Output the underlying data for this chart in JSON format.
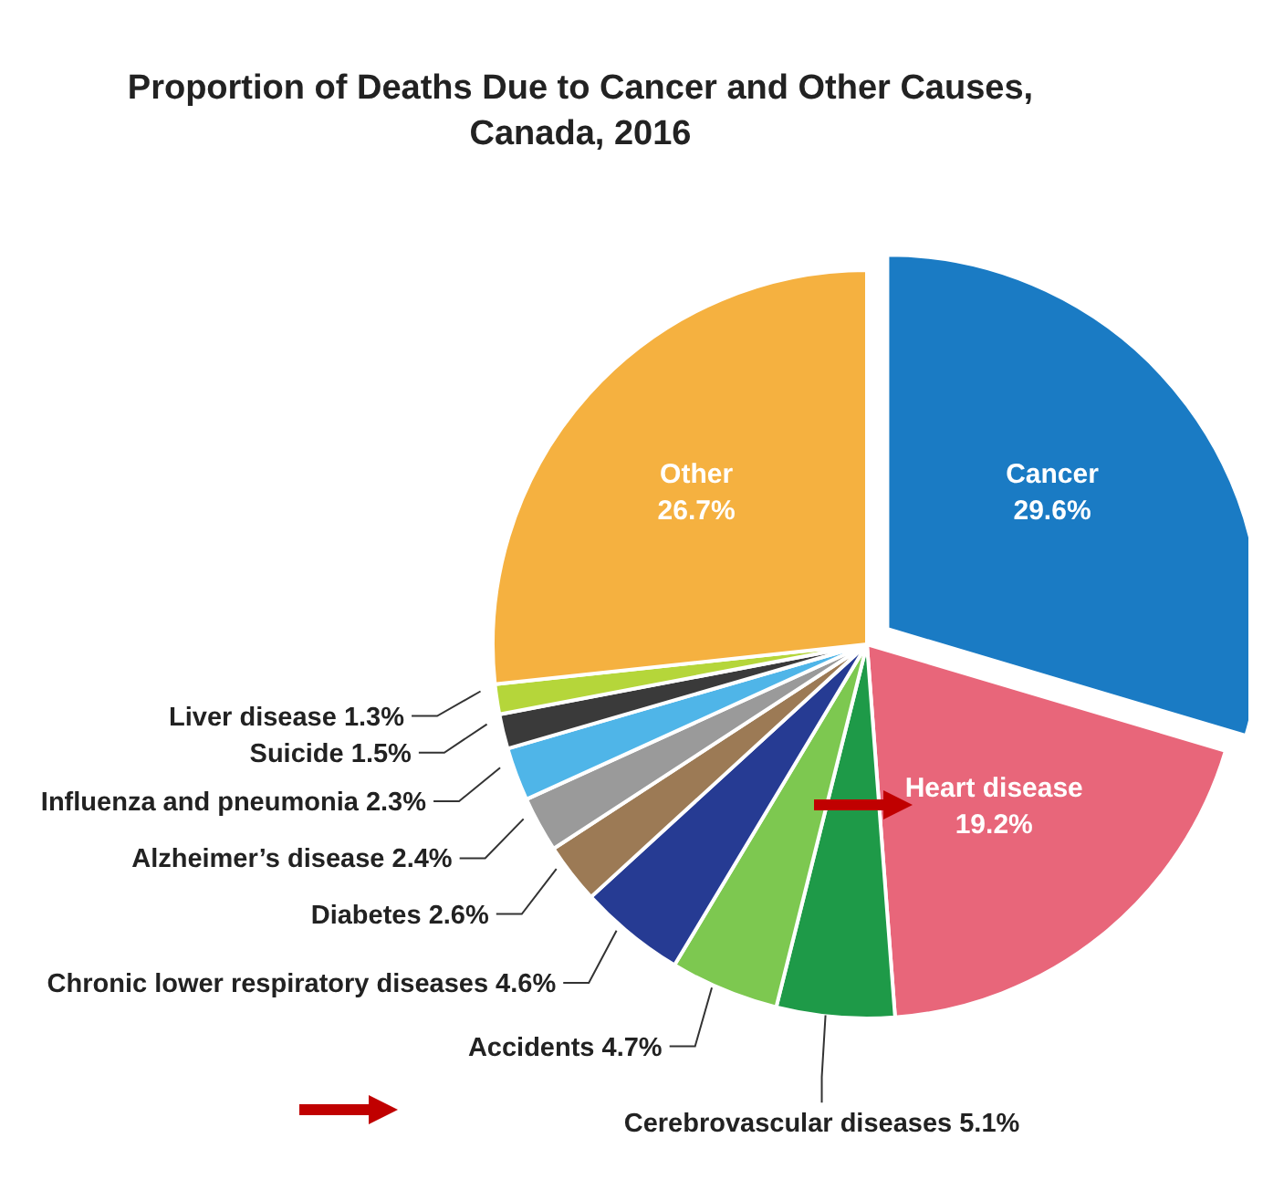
{
  "chart_data": {
    "type": "pie",
    "title": "Proportion of Deaths Due to Cancer and Other Causes, Canada, 2016",
    "categories": [
      "Cancer",
      "Heart disease",
      "Cerebrovascular diseases",
      "Accidents",
      "Chronic lower respiratory diseases",
      "Diabetes",
      "Alzheimer’s disease",
      "Influenza and pneumonia",
      "Suicide",
      "Liver disease",
      "Other"
    ],
    "values": [
      29.6,
      19.2,
      5.1,
      4.7,
      4.6,
      2.6,
      2.4,
      2.3,
      1.5,
      1.3,
      26.7
    ],
    "colors": [
      "#1a7bc4",
      "#e8667a",
      "#1e9a48",
      "#7dc850",
      "#263b93",
      "#9c7a55",
      "#9a9a9a",
      "#4fb5e8",
      "#3a3a3a",
      "#b5d63a",
      "#f5b140"
    ],
    "value_labels": [
      "29.6%",
      "19.2%",
      "5.1%",
      "4.7%",
      "4.6%",
      "2.6%",
      "2.4%",
      "2.3%",
      "1.5%",
      "1.3%",
      "26.7%"
    ],
    "legend": false
  }
}
